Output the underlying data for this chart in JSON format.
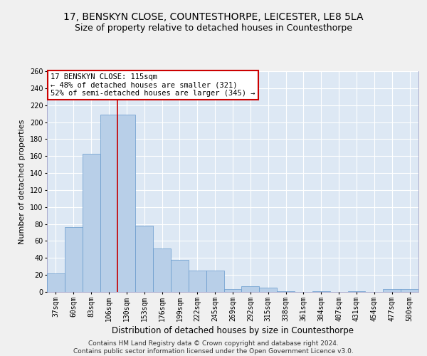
{
  "title": "17, BENSKYN CLOSE, COUNTESTHORPE, LEICESTER, LE8 5LA",
  "subtitle": "Size of property relative to detached houses in Countesthorpe",
  "xlabel": "Distribution of detached houses by size in Countesthorpe",
  "ylabel": "Number of detached properties",
  "categories": [
    "37sqm",
    "60sqm",
    "83sqm",
    "106sqm",
    "130sqm",
    "153sqm",
    "176sqm",
    "199sqm",
    "222sqm",
    "245sqm",
    "269sqm",
    "292sqm",
    "315sqm",
    "338sqm",
    "361sqm",
    "384sqm",
    "407sqm",
    "431sqm",
    "454sqm",
    "477sqm",
    "500sqm"
  ],
  "bar_values": [
    22,
    76,
    163,
    209,
    209,
    78,
    51,
    38,
    25,
    25,
    3,
    7,
    5,
    1,
    0,
    1,
    0,
    1,
    0,
    3,
    3
  ],
  "bar_color": "#b8cfe8",
  "bar_edge_color": "#6699cc",
  "background_color": "#dde8f4",
  "grid_color": "#ffffff",
  "vline_x_index": 3.5,
  "vline_color": "#cc0000",
  "annotation_text": "17 BENSKYN CLOSE: 115sqm\n← 48% of detached houses are smaller (321)\n52% of semi-detached houses are larger (345) →",
  "annotation_box_color": "#ffffff",
  "annotation_box_edge_color": "#cc0000",
  "ylim": [
    0,
    260
  ],
  "yticks": [
    0,
    20,
    40,
    60,
    80,
    100,
    120,
    140,
    160,
    180,
    200,
    220,
    240,
    260
  ],
  "footnote": "Contains HM Land Registry data © Crown copyright and database right 2024.\nContains public sector information licensed under the Open Government Licence v3.0.",
  "title_fontsize": 10,
  "subtitle_fontsize": 9,
  "xlabel_fontsize": 8.5,
  "ylabel_fontsize": 8,
  "tick_fontsize": 7,
  "annotation_fontsize": 7.5,
  "footnote_fontsize": 6.5,
  "fig_bg_color": "#f0f0f0"
}
